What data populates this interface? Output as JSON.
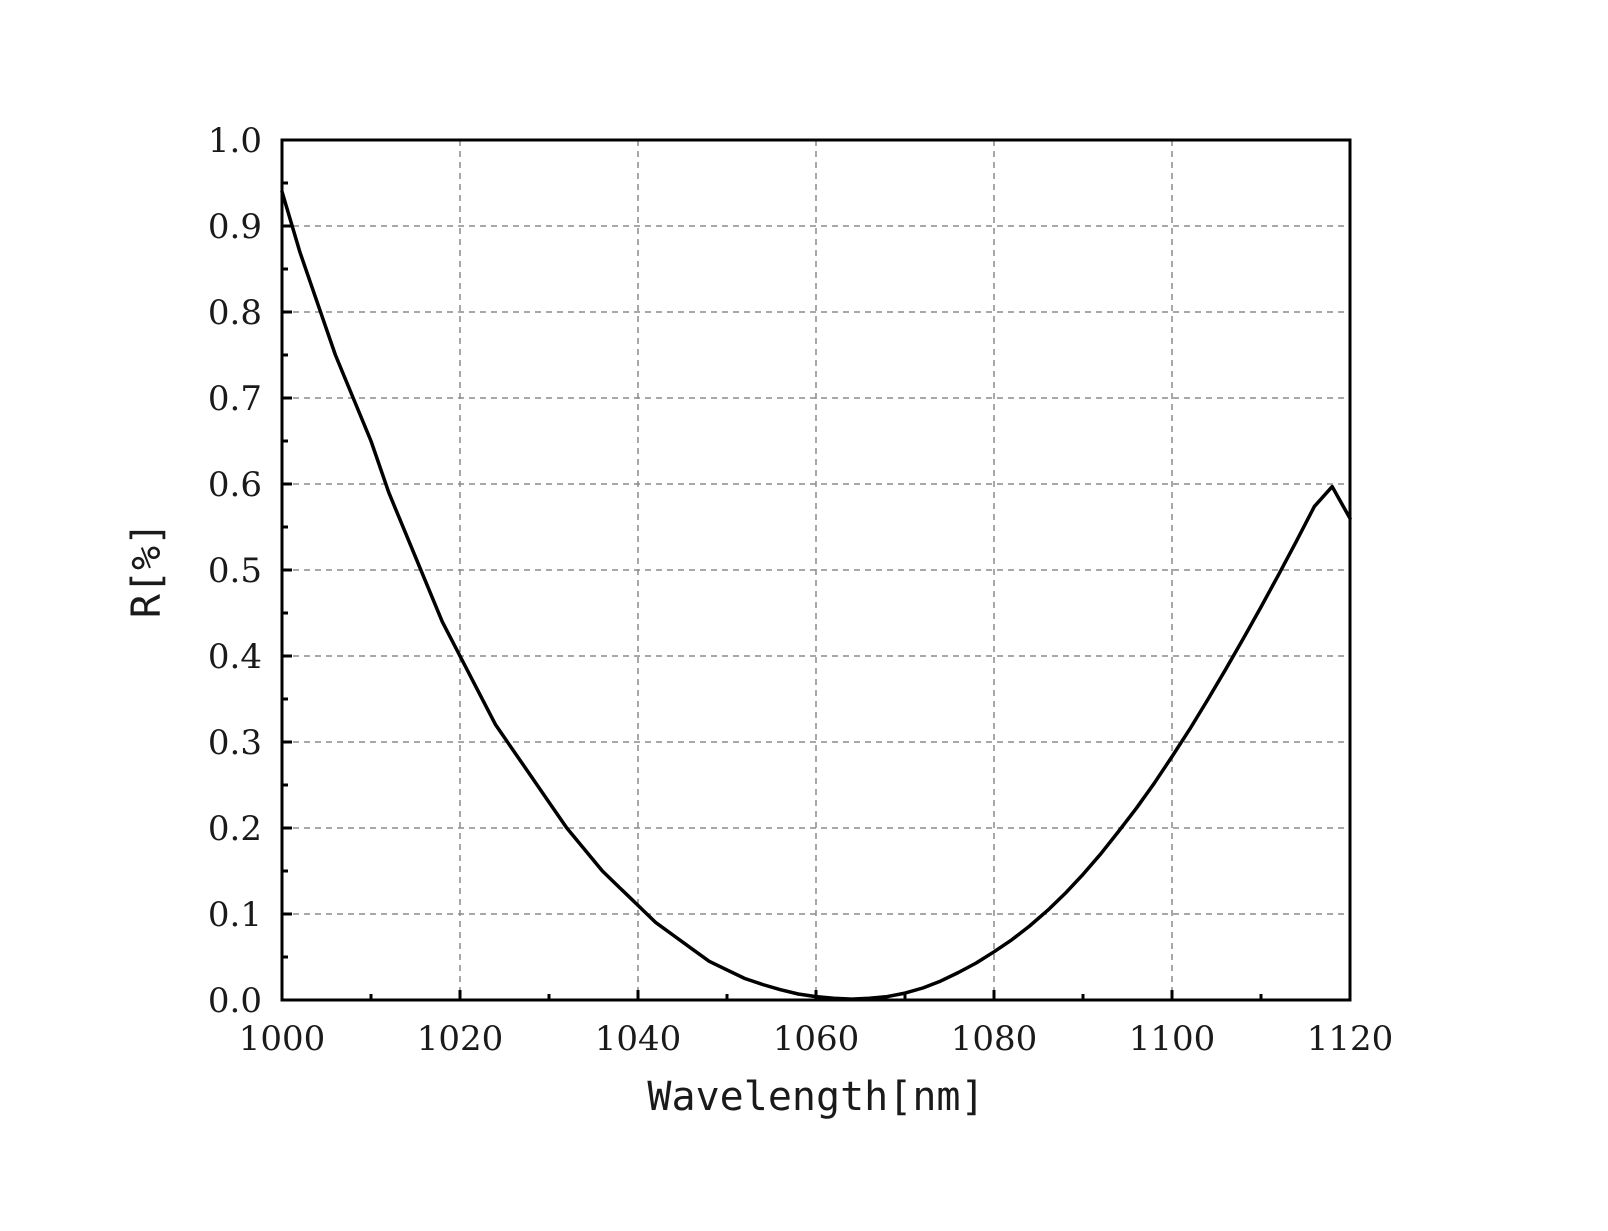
{
  "chart_data": {
    "type": "line",
    "title": "",
    "xlabel": "Wavelength[nm]",
    "ylabel": "R[%]",
    "xlim": [
      1000,
      1120
    ],
    "ylim": [
      0.0,
      1.0
    ],
    "grid": true,
    "x_ticks": [
      1000,
      1020,
      1040,
      1060,
      1080,
      1100,
      1120
    ],
    "x_tick_labels": [
      "1000",
      "1020",
      "1040",
      "1060",
      "1080",
      "1100",
      "1120"
    ],
    "y_ticks": [
      0.0,
      0.1,
      0.2,
      0.3,
      0.4,
      0.5,
      0.6,
      0.7,
      0.8,
      0.9,
      1.0
    ],
    "y_tick_labels": [
      "0.0",
      "0.1",
      "0.2",
      "0.3",
      "0.4",
      "0.5",
      "0.6",
      "0.7",
      "0.8",
      "0.9",
      "1.0"
    ],
    "line_color": "#000000",
    "series": [
      {
        "x": [
          1000,
          1002,
          1004,
          1006,
          1008,
          1010,
          1012,
          1014,
          1016,
          1018,
          1020,
          1022,
          1024,
          1026,
          1028,
          1030,
          1032,
          1034,
          1036,
          1038,
          1040,
          1042,
          1044,
          1046,
          1048,
          1050,
          1052,
          1054,
          1056,
          1058,
          1060,
          1062,
          1064,
          1066,
          1068,
          1070,
          1072,
          1074,
          1076,
          1078,
          1080,
          1082,
          1084,
          1086,
          1088,
          1090,
          1092,
          1094,
          1096,
          1098,
          1100,
          1102,
          1104,
          1106,
          1108,
          1110,
          1112,
          1114,
          1116,
          1118,
          1120
        ],
        "y": [
          0.94,
          0.87,
          0.81,
          0.75,
          0.7,
          0.65,
          0.59,
          0.54,
          0.49,
          0.44,
          0.4,
          0.36,
          0.32,
          0.29,
          0.26,
          0.23,
          0.2,
          0.175,
          0.15,
          0.13,
          0.11,
          0.09,
          0.075,
          0.06,
          0.045,
          0.035,
          0.025,
          0.018,
          0.012,
          0.007,
          0.004,
          0.002,
          0.001,
          0.002,
          0.004,
          0.008,
          0.014,
          0.022,
          0.032,
          0.043,
          0.056,
          0.07,
          0.086,
          0.104,
          0.124,
          0.146,
          0.17,
          0.196,
          0.223,
          0.252,
          0.283,
          0.315,
          0.349,
          0.384,
          0.42,
          0.457,
          0.495,
          0.534,
          0.574,
          0.597,
          0.56
        ]
      }
    ]
  }
}
